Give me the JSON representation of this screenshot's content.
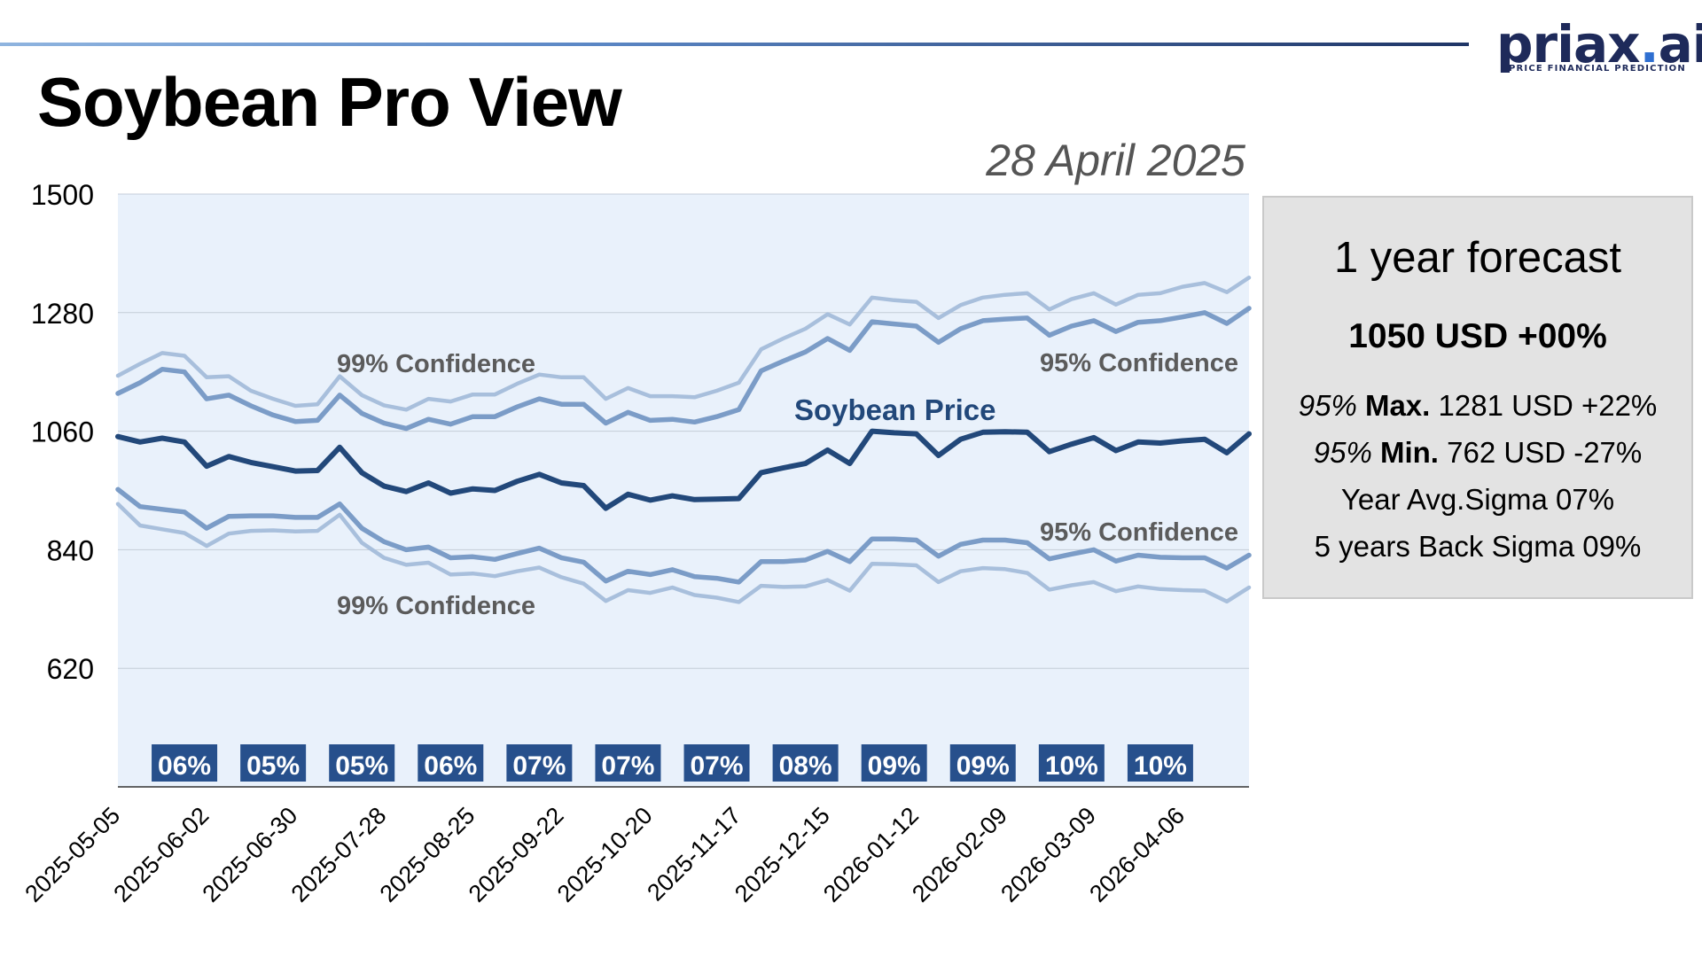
{
  "brand": {
    "name": "priax",
    "dot": ".",
    "tld": "ai",
    "tagline": "PRICE FINANCIAL PREDICTION",
    "accent_color": "#2f6fd1",
    "dark_color": "#1e2a5a"
  },
  "header": {
    "title": "Soybean Pro View",
    "date": "28 April 2025"
  },
  "forecast": {
    "title": "1 year forecast",
    "headline": "1050 USD +00%",
    "max": {
      "prefix": "95%",
      "label": "Max.",
      "value": "1281 USD +22%"
    },
    "min": {
      "prefix": "95%",
      "label": "Min.",
      "value": "762 USD -27%"
    },
    "year_avg_sigma": "Year Avg.Sigma 07%",
    "back_sigma": "5 years Back Sigma 09%"
  },
  "chart_data": {
    "type": "line",
    "y_range": [
      400,
      1500
    ],
    "y_ticks": [
      620,
      840,
      1060,
      1280,
      1500
    ],
    "grid": "horizontal",
    "x_tick_labels": [
      "2025-05-05",
      "2025-06-02",
      "2025-06-30",
      "2025-07-28",
      "2025-08-25",
      "2025-09-22",
      "2025-10-20",
      "2025-11-17",
      "2025-12-15",
      "2026-01-12",
      "2026-02-09",
      "2026-03-09",
      "2026-04-06"
    ],
    "x_dates": [
      "2025-05-05",
      "2025-05-12",
      "2025-05-19",
      "2025-05-26",
      "2025-06-02",
      "2025-06-09",
      "2025-06-16",
      "2025-06-23",
      "2025-06-30",
      "2025-07-07",
      "2025-07-14",
      "2025-07-21",
      "2025-07-28",
      "2025-08-04",
      "2025-08-11",
      "2025-08-18",
      "2025-08-25",
      "2025-09-01",
      "2025-09-08",
      "2025-09-15",
      "2025-09-22",
      "2025-09-29",
      "2025-10-06",
      "2025-10-13",
      "2025-10-20",
      "2025-10-27",
      "2025-11-03",
      "2025-11-10",
      "2025-11-17",
      "2025-11-24",
      "2025-12-01",
      "2025-12-08",
      "2025-12-15",
      "2025-12-22",
      "2025-12-29",
      "2026-01-05",
      "2026-01-12",
      "2026-01-19",
      "2026-01-26",
      "2026-02-02",
      "2026-02-09",
      "2026-02-16",
      "2026-02-23",
      "2026-03-02",
      "2026-03-09",
      "2026-03-16",
      "2026-03-23",
      "2026-03-30",
      "2026-04-06",
      "2026-04-13",
      "2026-04-20",
      "2026-04-27"
    ],
    "series": [
      {
        "name": "Soybean Price",
        "role": "price",
        "color": "#22487a",
        "values": [
          1050,
          1040,
          1047,
          1040,
          995,
          1013,
          1002,
          994,
          986,
          987,
          1030,
          983,
          958,
          948,
          964,
          945,
          953,
          950,
          967,
          980,
          964,
          959,
          917,
          943,
          932,
          940,
          933,
          934,
          935,
          983,
          992,
          1000,
          1025,
          1000,
          1060,
          1057,
          1055,
          1015,
          1045,
          1058,
          1059,
          1058,
          1022,
          1036,
          1048,
          1024,
          1040,
          1038,
          1042,
          1045,
          1020,
          1055
        ]
      },
      {
        "name": "95% Confidence",
        "role": "band95_upper",
        "color": "#7b9cc7",
        "values": [
          1130,
          1150,
          1175,
          1170,
          1120,
          1127,
          1107,
          1090,
          1078,
          1080,
          1127,
          1093,
          1075,
          1065,
          1082,
          1073,
          1087,
          1087,
          1105,
          1120,
          1110,
          1110,
          1075,
          1095,
          1080,
          1082,
          1077,
          1087,
          1100,
          1172,
          1190,
          1207,
          1232,
          1210,
          1263,
          1259,
          1255,
          1225,
          1250,
          1265,
          1268,
          1270,
          1238,
          1255,
          1265,
          1245,
          1262,
          1265,
          1272,
          1280,
          1260,
          1288
        ]
      },
      {
        "name": "95% Confidence",
        "role": "band95_lower",
        "color": "#7b9cc7",
        "values": [
          952,
          920,
          915,
          910,
          880,
          902,
          903,
          903,
          900,
          900,
          925,
          880,
          855,
          840,
          845,
          825,
          827,
          822,
          833,
          843,
          825,
          817,
          782,
          800,
          794,
          803,
          790,
          787,
          780,
          818,
          818,
          821,
          837,
          818,
          860,
          860,
          858,
          828,
          850,
          858,
          858,
          853,
          823,
          832,
          840,
          819,
          830,
          826,
          825,
          825,
          806,
          830
        ]
      },
      {
        "name": "99% Confidence",
        "role": "band99_upper",
        "color": "#a8bfdc",
        "values": [
          1163,
          1185,
          1205,
          1200,
          1160,
          1162,
          1135,
          1120,
          1107,
          1110,
          1162,
          1127,
          1108,
          1100,
          1120,
          1115,
          1128,
          1128,
          1148,
          1165,
          1160,
          1160,
          1120,
          1140,
          1125,
          1125,
          1123,
          1135,
          1150,
          1212,
          1232,
          1250,
          1277,
          1258,
          1308,
          1303,
          1300,
          1270,
          1294,
          1308,
          1313,
          1316,
          1286,
          1305,
          1316,
          1295,
          1313,
          1316,
          1328,
          1335,
          1318,
          1345
        ]
      },
      {
        "name": "99% Confidence",
        "role": "band99_lower",
        "color": "#a8bfdc",
        "values": [
          925,
          885,
          878,
          871,
          847,
          870,
          875,
          876,
          874,
          875,
          905,
          853,
          825,
          812,
          816,
          794,
          796,
          791,
          800,
          807,
          789,
          777,
          745,
          765,
          760,
          770,
          756,
          751,
          743,
          773,
          771,
          772,
          784,
          764,
          814,
          813,
          811,
          780,
          800,
          806,
          804,
          797,
          766,
          774,
          780,
          763,
          772,
          767,
          765,
          764,
          744,
          770
        ]
      }
    ],
    "annotations": [
      {
        "text": "99% Confidence",
        "near": "upper-left"
      },
      {
        "text": "95% Confidence",
        "near": "upper-right"
      },
      {
        "text": "Soybean Price",
        "near": "center"
      },
      {
        "text": "95% Confidence",
        "near": "lower-right"
      },
      {
        "text": "99% Confidence",
        "near": "lower-left"
      }
    ],
    "sigma_badges": [
      {
        "text": "06%",
        "date": "2025-05-26"
      },
      {
        "text": "05%",
        "date": "2025-06-23"
      },
      {
        "text": "05%",
        "date": "2025-07-21"
      },
      {
        "text": "06%",
        "date": "2025-08-18"
      },
      {
        "text": "07%",
        "date": "2025-09-15"
      },
      {
        "text": "07%",
        "date": "2025-10-13"
      },
      {
        "text": "07%",
        "date": "2025-11-10"
      },
      {
        "text": "08%",
        "date": "2025-12-08"
      },
      {
        "text": "09%",
        "date": "2026-01-05"
      },
      {
        "text": "09%",
        "date": "2026-02-02"
      },
      {
        "text": "10%",
        "date": "2026-03-02"
      },
      {
        "text": "10%",
        "date": "2026-03-30"
      }
    ],
    "badge_color": "#27508c",
    "plot_background": "#e9f1fb"
  }
}
